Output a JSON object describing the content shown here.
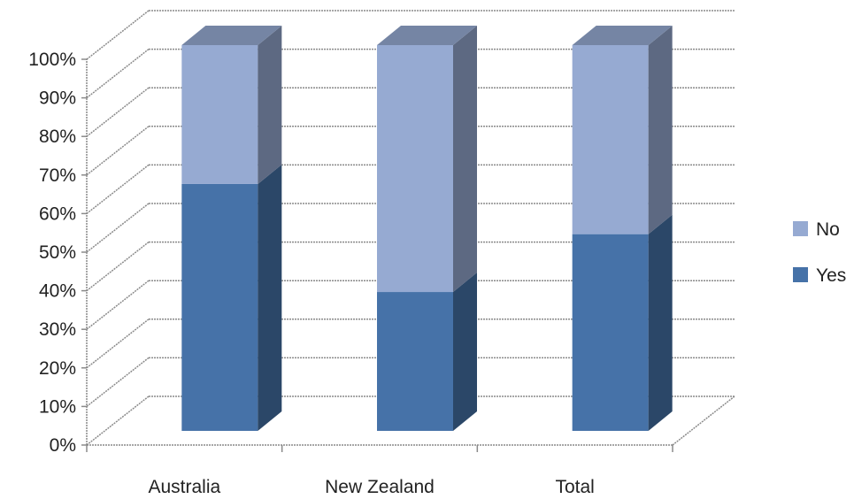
{
  "chart_data": {
    "type": "bar",
    "stacked": true,
    "percent_stacked": true,
    "three_d": true,
    "categories": [
      "Australia",
      "New Zealand",
      "Total"
    ],
    "series": [
      {
        "name": "Yes",
        "values": [
          64,
          36,
          51
        ],
        "color": "#4672A8"
      },
      {
        "name": "No",
        "values": [
          36,
          64,
          49
        ],
        "color": "#96AAD2"
      }
    ],
    "y_ticks": [
      "0%",
      "10%",
      "20%",
      "30%",
      "40%",
      "50%",
      "60%",
      "70%",
      "80%",
      "90%",
      "100%"
    ],
    "ylim": [
      0,
      100
    ],
    "grid": true,
    "legend_position": "right",
    "legend_order": [
      "No",
      "Yes"
    ]
  }
}
